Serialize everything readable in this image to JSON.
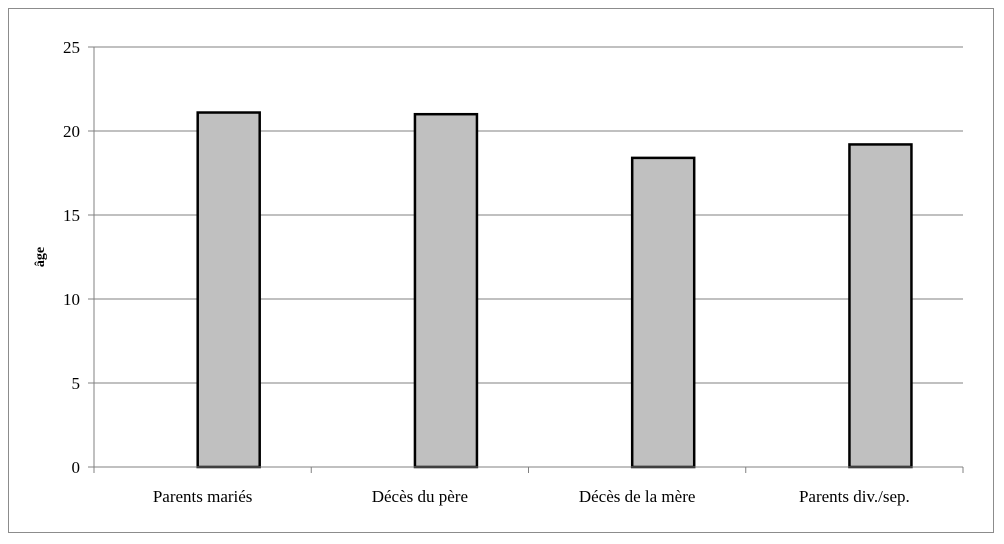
{
  "chart_data": {
    "type": "bar",
    "title": "",
    "xlabel": "",
    "ylabel": "âge",
    "categories": [
      "Parents mariés",
      "Décès du père",
      "Décès de la mère",
      "Parents div./sep."
    ],
    "values": [
      21.1,
      21.0,
      18.4,
      19.2
    ],
    "ylim": [
      0,
      25
    ],
    "yticks": [
      0,
      5,
      10,
      15,
      20,
      25
    ],
    "grid": true,
    "legend": "none",
    "colors": {
      "bar_fill": "#c0c0c0",
      "bar_stroke": "#000000",
      "grid": "#808080",
      "axis": "#808080"
    }
  }
}
